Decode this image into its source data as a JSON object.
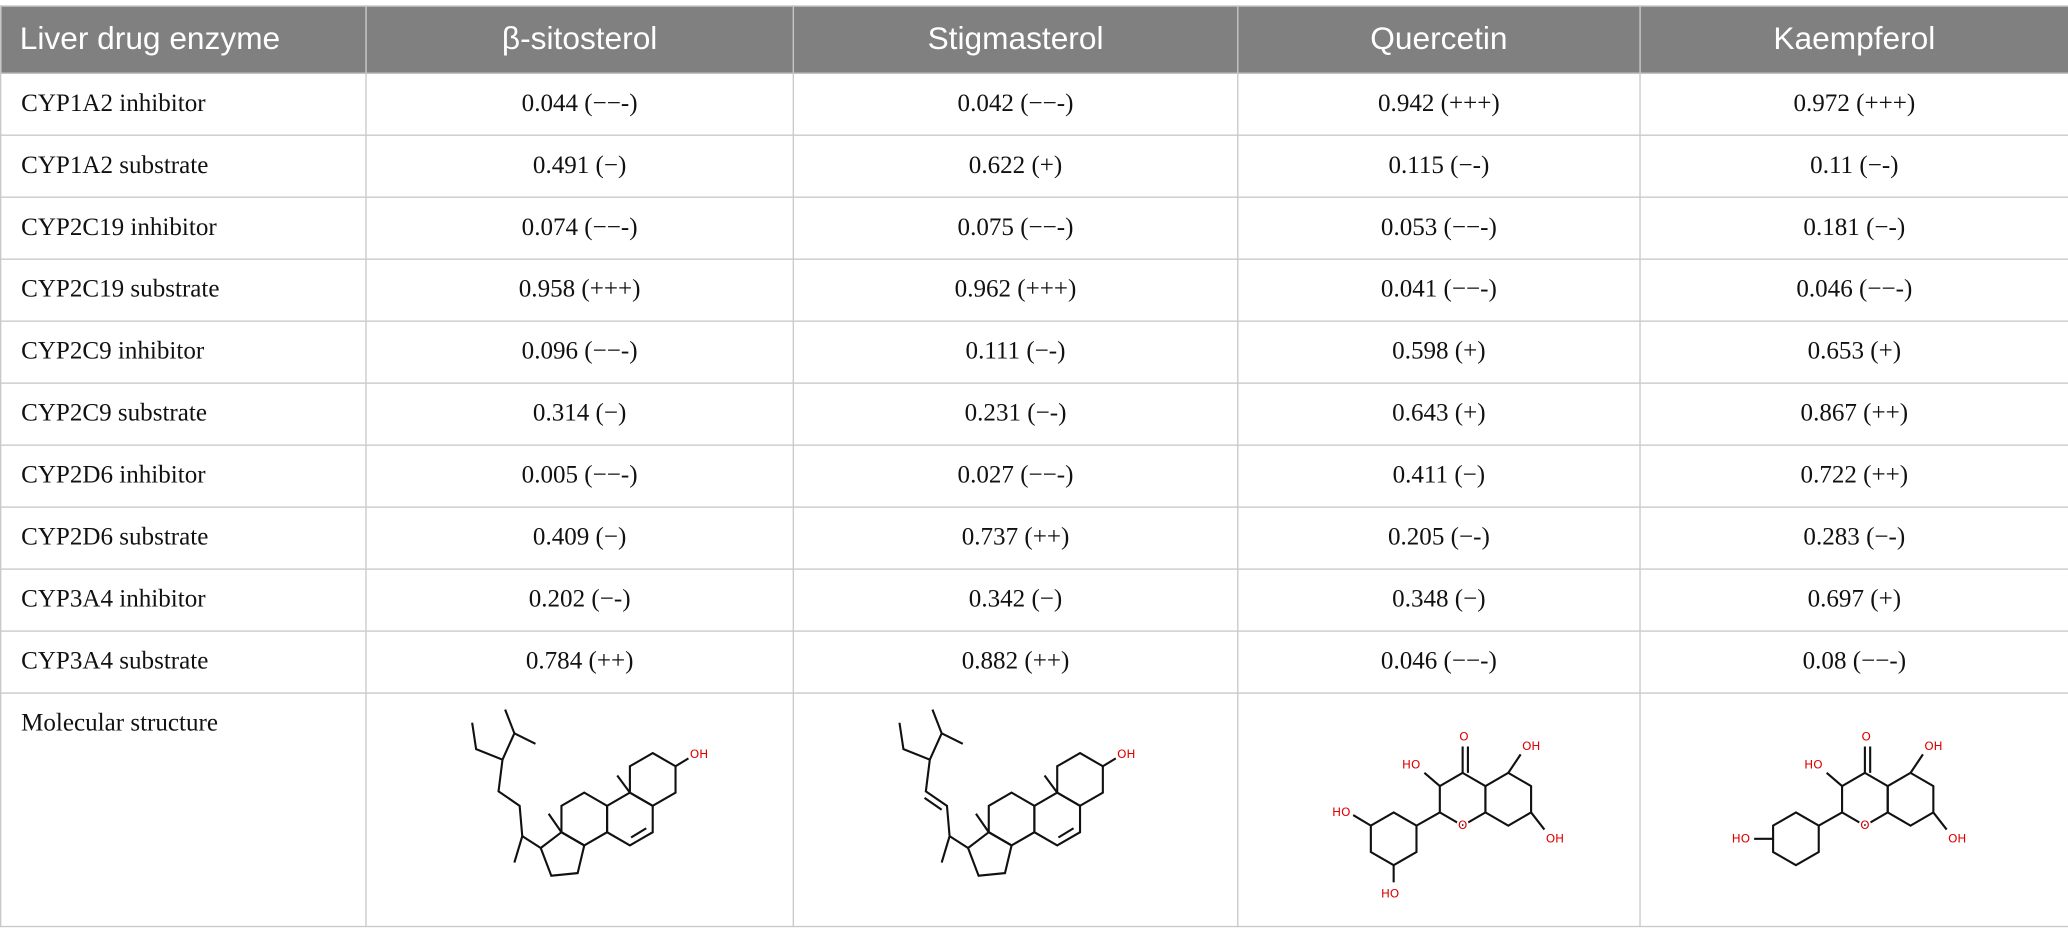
{
  "table": {
    "header": [
      "Liver drug enzyme",
      "β-sitosterol",
      "Stigmasterol",
      "Quercetin",
      "Kaempferol"
    ],
    "rows": [
      [
        "CYP1A2 inhibitor",
        "0.044 (−−-)",
        "0.042 (−−-)",
        "0.942 (+++)",
        "0.972 (+++)"
      ],
      [
        "CYP1A2 substrate",
        "0.491 (−)",
        "0.622 (+)",
        "0.115 (−-)",
        "0.11 (−-)"
      ],
      [
        "CYP2C19 inhibitor",
        "0.074 (−−-)",
        "0.075 (−−-)",
        "0.053 (−−-)",
        "0.181 (−-)"
      ],
      [
        "CYP2C19 substrate",
        "0.958 (+++)",
        "0.962 (+++)",
        "0.041 (−−-)",
        "0.046 (−−-)"
      ],
      [
        "CYP2C9 inhibitor",
        "0.096 (−−-)",
        "0.111 (−-)",
        "0.598 (+)",
        "0.653 (+)"
      ],
      [
        "CYP2C9 substrate",
        "0.314 (−)",
        "0.231 (−-)",
        "0.643 (+)",
        "0.867 (++)"
      ],
      [
        "CYP2D6 inhibitor",
        "0.005 (−−-)",
        "0.027 (−−-)",
        "0.411 (−)",
        "0.722 (++)"
      ],
      [
        "CYP2D6 substrate",
        "0.409 (−)",
        "0.737 (++)",
        "0.205 (−-)",
        "0.283 (−-)"
      ],
      [
        "CYP3A4 inhibitor",
        "0.202 (−-)",
        "0.342 (−)",
        "0.348 (−)",
        "0.697 (+)"
      ],
      [
        "CYP3A4 substrate",
        "0.784 (++)",
        "0.882 (++)",
        "0.046 (−−-)",
        "0.08 (−−-)"
      ]
    ],
    "structure_row": {
      "label": "Molecular structure"
    },
    "structures": [
      {
        "labels": [
          "OH"
        ]
      },
      {
        "labels": [
          "OH"
        ]
      },
      {
        "labels": [
          "HO",
          "O",
          "OH",
          "HO",
          "HO",
          "O",
          "OH"
        ]
      },
      {
        "labels": [
          "HO",
          "O",
          "OH",
          "HO",
          "O",
          "OH"
        ]
      }
    ]
  }
}
